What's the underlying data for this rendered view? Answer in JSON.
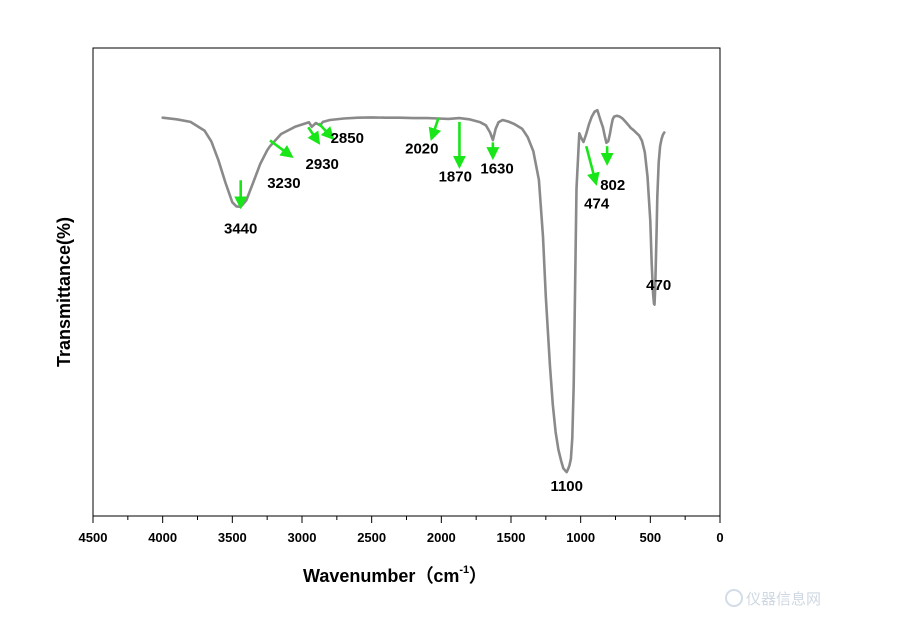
{
  "chart_data": {
    "type": "line",
    "title": "",
    "xlabel": "Wavenumber（cm",
    "xlabel_sup": "-1",
    "xlabel_close": "）",
    "ylabel": "Transmittance(%)",
    "xlim": [
      4500,
      0
    ],
    "ylim": [
      0,
      100
    ],
    "x_ticks": [
      4500,
      4000,
      3500,
      3000,
      2500,
      2000,
      1500,
      1000,
      500,
      0
    ],
    "x_tick_labels": [
      "4500",
      "4000",
      "3500",
      "3000",
      "2500",
      "2000",
      "1500",
      "1000",
      "500",
      "0"
    ],
    "x_minor_ticks": [
      4250,
      3750,
      3250,
      2750,
      2250,
      1750,
      1250,
      750,
      250
    ],
    "y_ticks_visible": false,
    "series": [
      {
        "name": "FTIR spectrum",
        "color": "#8a8a8a",
        "x": [
          4000,
          3900,
          3800,
          3700,
          3650,
          3600,
          3550,
          3500,
          3470,
          3440,
          3400,
          3350,
          3300,
          3250,
          3230,
          3150,
          3050,
          2950,
          2930,
          2900,
          2870,
          2850,
          2800,
          2700,
          2600,
          2500,
          2400,
          2300,
          2200,
          2100,
          2020,
          1950,
          1870,
          1800,
          1720,
          1680,
          1650,
          1630,
          1610,
          1590,
          1560,
          1520,
          1480,
          1420,
          1380,
          1340,
          1300,
          1270,
          1250,
          1220,
          1200,
          1180,
          1160,
          1140,
          1125,
          1110,
          1100,
          1090,
          1080,
          1070,
          1060,
          1050,
          1040,
          1030,
          1010,
          995,
          980,
          960,
          940,
          920,
          900,
          880,
          860,
          840,
          825,
          815,
          802,
          790,
          780,
          770,
          760,
          740,
          720,
          700,
          680,
          660,
          640,
          620,
          600,
          580,
          560,
          540,
          520,
          500,
          490,
          480,
          474,
          470,
          465,
          460,
          455,
          450,
          440,
          430,
          420,
          410,
          400
        ],
        "y": [
          94.0,
          93.6,
          92.9,
          90.6,
          87.7,
          82.8,
          76.9,
          71.7,
          70.6,
          70.5,
          72.2,
          76.9,
          81.8,
          85.4,
          86.5,
          89.7,
          91.6,
          92.8,
          91.6,
          92.6,
          92.0,
          92.9,
          93.4,
          93.8,
          94.0,
          94.1,
          94.0,
          94.0,
          93.9,
          93.9,
          93.8,
          93.7,
          93.9,
          93.6,
          92.8,
          92.0,
          90.1,
          88.1,
          91.1,
          92.8,
          93.4,
          93.0,
          92.4,
          91.1,
          88.9,
          85.2,
          77.6,
          62.6,
          46.8,
          28.4,
          18.3,
          11.1,
          6.4,
          3.4,
          1.5,
          0.9,
          0.5,
          1.3,
          2.3,
          4.0,
          9.5,
          23.4,
          49.4,
          75.3,
          89.9,
          88.6,
          87.6,
          89.7,
          92.3,
          94.3,
          95.6,
          96.0,
          93.6,
          91.4,
          88.9,
          87.4,
          87.8,
          89.7,
          91.8,
          93.6,
          94.3,
          94.5,
          94.3,
          93.8,
          93.0,
          92.2,
          91.3,
          90.7,
          90.0,
          89.3,
          87.9,
          84.9,
          78.5,
          66.8,
          55.5,
          47.5,
          44.9,
          44.7,
          48.9,
          56.4,
          64.1,
          73.1,
          82.2,
          86.5,
          88.3,
          89.5,
          90.1
        ]
      }
    ],
    "annotations": [
      {
        "label": "3440",
        "tail": [
          3440,
          77.5
        ],
        "head": [
          3440,
          70.5
        ],
        "label_at": [
          3440,
          63.5
        ]
      },
      {
        "label": "3230",
        "tail": [
          3230,
          88.0
        ],
        "head": [
          3075,
          83.8
        ],
        "label_at": [
          3130,
          75.5
        ]
      },
      {
        "label": "2930",
        "tail": [
          2955,
          91.5
        ],
        "head": [
          2880,
          87.4
        ],
        "label_at": [
          2855,
          80.5
        ]
      },
      {
        "label": "2850",
        "tail": [
          2880,
          92.5
        ],
        "head": [
          2780,
          88.6
        ],
        "label_at": [
          2675,
          87.4
        ]
      },
      {
        "label": "2020",
        "tail": [
          2020,
          94.0
        ],
        "head": [
          2070,
          88.5
        ],
        "label_at": [
          2140,
          84.5
        ]
      },
      {
        "label": "1870",
        "tail": [
          1870,
          92.9
        ],
        "head": [
          1870,
          81.2
        ],
        "label_at": [
          1900,
          77.2
        ]
      },
      {
        "label": "1630",
        "tail": [
          1630,
          87.5
        ],
        "head": [
          1630,
          83.5
        ],
        "label_at": [
          1600,
          79.3
        ]
      },
      {
        "label": "474",
        "tail": [
          960,
          86.5
        ],
        "head": [
          890,
          76.7
        ],
        "label_at": [
          885,
          70.0
        ]
      },
      {
        "label": "802",
        "tail": [
          810,
          86.5
        ],
        "head": [
          810,
          82.0
        ],
        "label_at": [
          770,
          74.9
        ]
      },
      {
        "label": "470",
        "tail": null,
        "head": null,
        "label_at": [
          440,
          48.6
        ]
      },
      {
        "label": "1100",
        "tail": null,
        "head": null,
        "label_at": [
          1100,
          -4.5
        ]
      }
    ],
    "annotation_color": "#19e619"
  },
  "watermark": {
    "text": "仪器信息网",
    "color": "#cfd8e2"
  }
}
